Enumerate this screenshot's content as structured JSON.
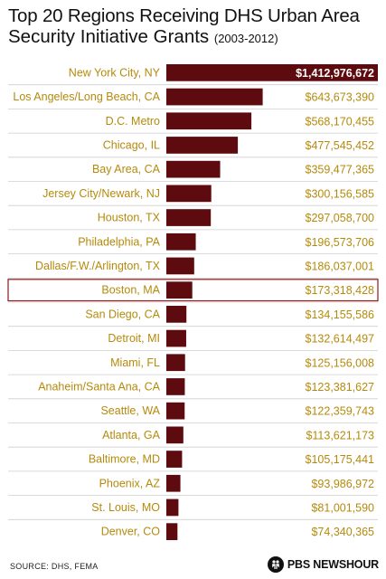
{
  "title_line1": "Top 20 Regions Receiving DHS Urban Area",
  "title_line2": "Security Initiative Grants",
  "title_years": "(2003-2012)",
  "source": "SOURCE: DHS, FEMA",
  "brand": "PBS NEWSHOUR",
  "brand_icon": "pbs-logo-icon",
  "colors": {
    "bar": "#5e0b0f",
    "label": "#b58a0c",
    "highlight_border": "#8b1a1a",
    "divider": "#cfcfcf",
    "first_value": "#ffffff"
  },
  "chart_data": {
    "type": "bar",
    "orientation": "horizontal",
    "highlighted_category": "Boston, MA",
    "categories": [
      "New York City, NY",
      "Los Angeles/Long Beach, CA",
      "D.C. Metro",
      "Chicago, IL",
      "Bay Area, CA",
      "Jersey City/Newark, NJ",
      "Houston, TX",
      "Philadelphia, PA",
      "Dallas/F.W./Arlington, TX",
      "Boston, MA",
      "San Diego, CA",
      "Detroit, MI",
      "Miami, FL",
      "Anaheim/Santa Ana, CA",
      "Seattle, WA",
      "Atlanta, GA",
      "Baltimore, MD",
      "Phoenix, AZ",
      "St. Louis, MO",
      "Denver, CO"
    ],
    "values": [
      1412976672,
      643673390,
      568170455,
      477545452,
      359477365,
      300156585,
      297058700,
      196573706,
      186037001,
      173318428,
      134155586,
      132614497,
      125156008,
      123381627,
      122359743,
      113621173,
      105175441,
      93986972,
      81001590,
      74340365
    ],
    "value_labels": [
      "$1,412,976,672",
      "$643,673,390",
      "$568,170,455",
      "$477,545,452",
      "$359,477,365",
      "$300,156,585",
      "$297,058,700",
      "$196,573,706",
      "$186,037,001",
      "$173,318,428",
      "$134,155,586",
      "$132,614,497",
      "$125,156,008",
      "$123,381,627",
      "$122,359,743",
      "$113,621,173",
      "$105,175,441",
      "$93,986,972",
      "$81,001,590",
      "$74,340,365"
    ]
  }
}
